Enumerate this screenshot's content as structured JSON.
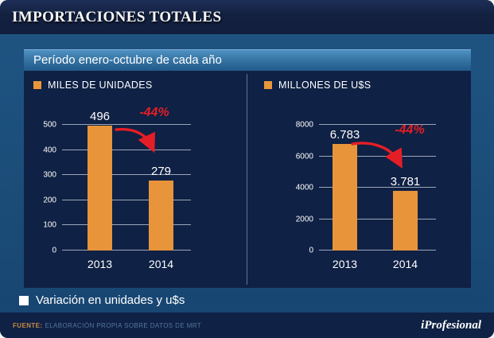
{
  "title_bar": {
    "title": "IMPORTACIONES TOTALES"
  },
  "subtitle": "Período enero-octubre de cada año",
  "legend": "Variación en unidades y u$s",
  "footer": {
    "source_label": "FUENTE:",
    "source_text": "ELABORACIÓN PROPIA SOBRE DATOS DE MRT",
    "brand": "iProfesional"
  },
  "colors": {
    "accent_orange": "#E8943B",
    "drop_red": "#E41E26",
    "panel_navy": "#0F2144",
    "body_blue": "#1B4C78",
    "title_navy": "#13203F",
    "gridline": "#BEC8D6"
  },
  "icons": {
    "legend-marker": "filled-square",
    "drop-arrow": "curved-arrow-down-right"
  },
  "chart_data": [
    {
      "type": "bar",
      "title": "MILES DE UNIDADES",
      "categories": [
        "2013",
        "2014"
      ],
      "values": [
        496,
        279
      ],
      "value_labels": [
        "496",
        "279"
      ],
      "ylim": [
        0,
        500
      ],
      "yticks": [
        0,
        100,
        200,
        300,
        400,
        500
      ],
      "annotation": "-44%",
      "grid": true,
      "legend_position": "none",
      "xlabel": "",
      "ylabel": ""
    },
    {
      "type": "bar",
      "title": "MILLONES DE U$S",
      "categories": [
        "2013",
        "2014"
      ],
      "values": [
        6783,
        3781
      ],
      "value_labels": [
        "6.783",
        "3.781"
      ],
      "ylim": [
        0,
        8000
      ],
      "yticks": [
        0,
        2000,
        4000,
        6000,
        8000
      ],
      "annotation": "-44%",
      "grid": true,
      "legend_position": "none",
      "xlabel": "",
      "ylabel": ""
    }
  ]
}
